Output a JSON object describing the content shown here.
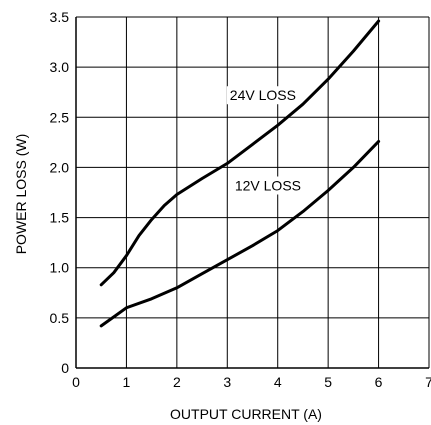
{
  "chart_data": {
    "type": "line",
    "title": "",
    "xlabel": "OUTPUT CURRENT (A)",
    "ylabel": "POWER LOSS (W)",
    "xlim": [
      0,
      7
    ],
    "ylim": [
      0,
      3.5
    ],
    "x_ticks": [
      "0",
      "1",
      "2",
      "3",
      "4",
      "5",
      "6",
      "7"
    ],
    "y_ticks": [
      "0",
      "0.5",
      "1.0",
      "1.5",
      "2.0",
      "2.5",
      "3.0",
      "3.5"
    ],
    "grid": true,
    "legend": "none",
    "series": [
      {
        "name": "24V LOSS",
        "x": [
          0.5,
          0.75,
          1.0,
          1.25,
          1.5,
          1.75,
          2.0,
          2.5,
          3.0,
          3.5,
          4.0,
          4.5,
          5.0,
          5.5,
          6.0
        ],
        "y": [
          0.83,
          0.95,
          1.12,
          1.32,
          1.48,
          1.62,
          1.73,
          1.89,
          2.04,
          2.23,
          2.42,
          2.63,
          2.88,
          3.16,
          3.46
        ]
      },
      {
        "name": "12V LOSS",
        "x": [
          0.5,
          0.75,
          1.0,
          1.5,
          2.0,
          2.5,
          3.0,
          3.5,
          4.0,
          4.5,
          5.0,
          5.5,
          6.0
        ],
        "y": [
          0.42,
          0.51,
          0.6,
          0.69,
          0.8,
          0.94,
          1.08,
          1.22,
          1.37,
          1.56,
          1.77,
          2.0,
          2.26
        ]
      }
    ],
    "annotations": [
      {
        "text": "24V LOSS",
        "x": 3.05,
        "y": 2.67
      },
      {
        "text": "12V LOSS",
        "x": 3.15,
        "y": 1.77
      }
    ],
    "colors": {
      "line": "#000000",
      "grid": "#000000",
      "background": "#ffffff"
    }
  }
}
